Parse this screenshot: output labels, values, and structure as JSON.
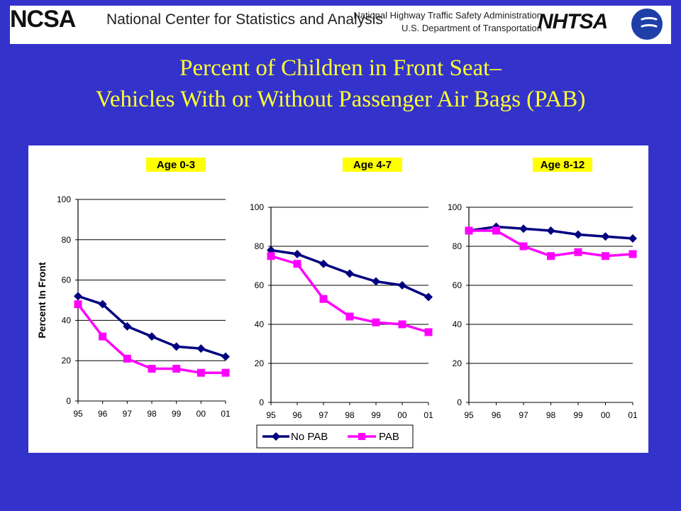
{
  "header": {
    "org_name": "National Center for Statistics and Analysis",
    "org_logo": "NCSA",
    "agency_line1": "National Highway Traffic Safety Administration",
    "agency_line2": "U.S. Department of Transportation",
    "agency_logo": "NHTSA",
    "seal_icon": "dot-seal-icon"
  },
  "slide": {
    "title_line1": "Percent of Children in Front Seat–",
    "title_line2": "Vehicles With or Without Passenger Air Bags (PAB)"
  },
  "colors": {
    "background": "#3333cc",
    "title": "#ffff33",
    "no_pab": "#000080",
    "pab": "#ff00ff",
    "subtitle_bg": "#ffff00"
  },
  "legend": [
    "No PAB",
    "PAB"
  ],
  "chart_data": [
    {
      "type": "line",
      "title": "Age 0-3",
      "ylabel": "Percent In Front",
      "ylim": [
        0,
        100
      ],
      "yticks": [
        "0",
        "20",
        "40",
        "60",
        "80",
        "100"
      ],
      "categories": [
        "95",
        "96",
        "97",
        "98",
        "99",
        "00",
        "01"
      ],
      "series": [
        {
          "name": "No PAB",
          "values": [
            52,
            48,
            37,
            32,
            27,
            26,
            22
          ]
        },
        {
          "name": "PAB",
          "values": [
            48,
            32,
            21,
            16,
            16,
            14,
            14
          ]
        }
      ]
    },
    {
      "type": "line",
      "title": "Age 4-7",
      "ylim": [
        0,
        100
      ],
      "yticks": [
        "0",
        "20",
        "40",
        "60",
        "80",
        "100"
      ],
      "categories": [
        "95",
        "96",
        "97",
        "98",
        "99",
        "00",
        "01"
      ],
      "series": [
        {
          "name": "No PAB",
          "values": [
            78,
            76,
            71,
            66,
            62,
            60,
            54
          ]
        },
        {
          "name": "PAB",
          "values": [
            75,
            71,
            53,
            44,
            41,
            40,
            36
          ]
        }
      ]
    },
    {
      "type": "line",
      "title": "Age 8-12",
      "ylim": [
        0,
        100
      ],
      "yticks": [
        "0",
        "20",
        "40",
        "60",
        "80",
        "100"
      ],
      "categories": [
        "95",
        "96",
        "97",
        "98",
        "99",
        "00",
        "01"
      ],
      "series": [
        {
          "name": "No PAB",
          "values": [
            88,
            90,
            89,
            88,
            86,
            85,
            84
          ]
        },
        {
          "name": "PAB",
          "values": [
            88,
            88,
            80,
            75,
            77,
            75,
            76
          ]
        }
      ]
    }
  ]
}
